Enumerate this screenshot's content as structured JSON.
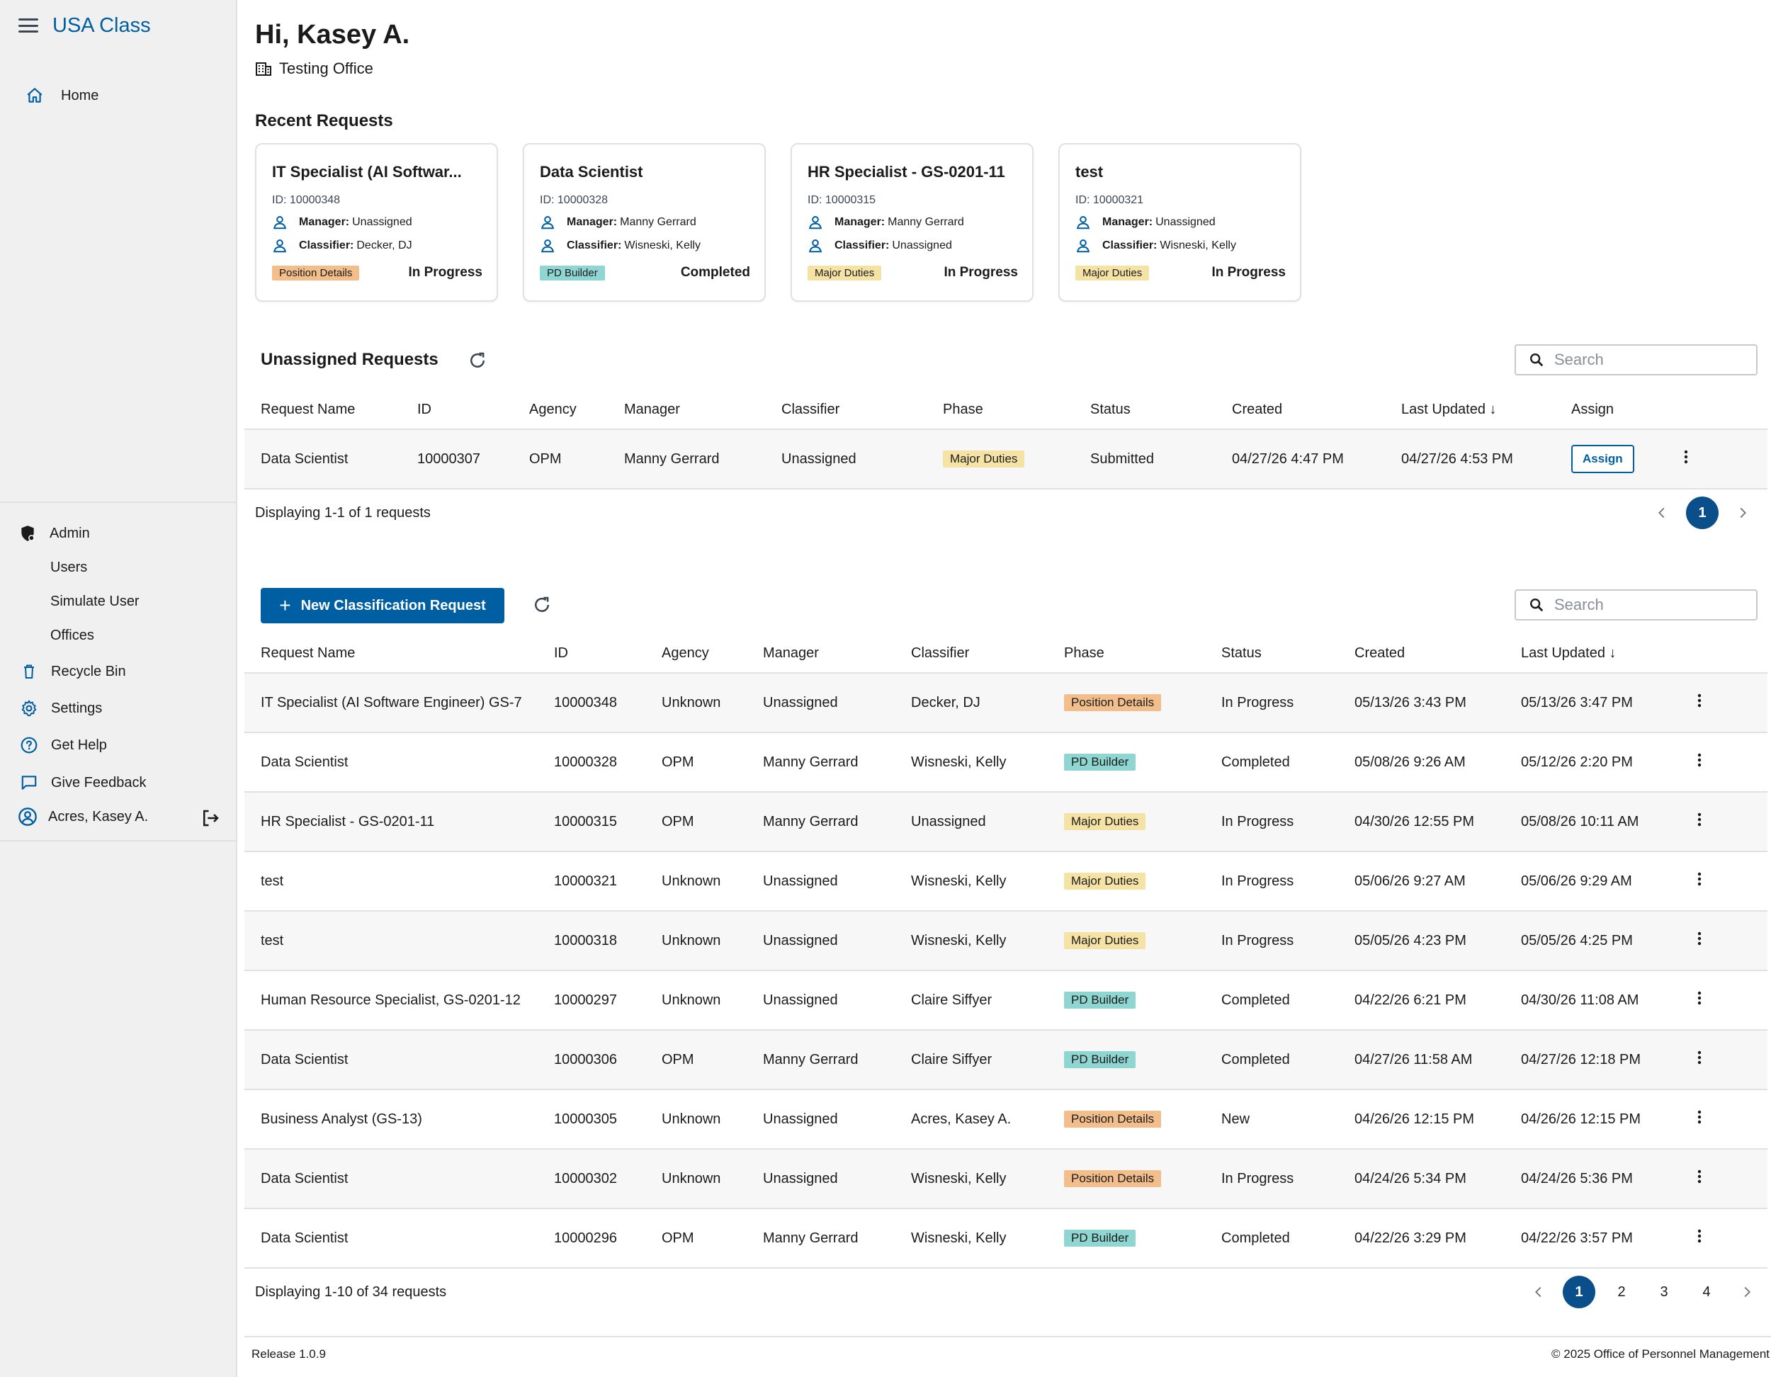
{
  "app": {
    "title": "USA Class"
  },
  "sidebar": {
    "home": "Home",
    "admin": "Admin",
    "admin_items": [
      "Users",
      "Simulate User",
      "Offices"
    ],
    "recycle_bin": "Recycle Bin",
    "settings": "Settings",
    "get_help": "Get Help",
    "give_feedback": "Give Feedback",
    "user": "Acres, Kasey A."
  },
  "header": {
    "greeting": "Hi, Kasey A.",
    "office": "Testing Office"
  },
  "recent": {
    "title": "Recent Requests",
    "cards": [
      {
        "title": "IT Specialist (AI Softwar...",
        "id": "ID: 10000348",
        "manager_label": "Manager:",
        "manager": "Unassigned",
        "classifier_label": "Classifier:",
        "classifier": "Decker, DJ",
        "phase": "Position Details",
        "phase_color": "orange",
        "status": "In Progress"
      },
      {
        "title": "Data Scientist",
        "id": "ID: 10000328",
        "manager_label": "Manager:",
        "manager": "Manny Gerrard",
        "classifier_label": "Classifier:",
        "classifier": "Wisneski, Kelly",
        "phase": "PD Builder",
        "phase_color": "teal",
        "status": "Completed"
      },
      {
        "title": "HR Specialist - GS-0201-11",
        "id": "ID: 10000315",
        "manager_label": "Manager:",
        "manager": "Manny Gerrard",
        "classifier_label": "Classifier:",
        "classifier": "Unassigned",
        "phase": "Major Duties",
        "phase_color": "yellow",
        "status": "In Progress"
      },
      {
        "title": "test",
        "id": "ID: 10000321",
        "manager_label": "Manager:",
        "manager": "Unassigned",
        "classifier_label": "Classifier:",
        "classifier": "Wisneski, Kelly",
        "phase": "Major Duties",
        "phase_color": "yellow",
        "status": "In Progress"
      }
    ]
  },
  "unassigned": {
    "title": "Unassigned Requests",
    "search_placeholder": "Search",
    "columns": [
      "Request Name",
      "ID",
      "Agency",
      "Manager",
      "Classifier",
      "Phase",
      "Status",
      "Created",
      "Last Updated",
      "Assign"
    ],
    "sort_arrow": "↓",
    "rows": [
      {
        "name": "Data Scientist",
        "id": "10000307",
        "agency": "OPM",
        "manager": "Manny Gerrard",
        "classifier": "Unassigned",
        "phase": "Major Duties",
        "phase_color": "yellow",
        "status": "Submitted",
        "created": "04/27/26 4:47 PM",
        "updated": "04/27/26 4:53 PM",
        "assign": "Assign"
      }
    ],
    "display": "Displaying 1-1 of 1 requests",
    "pages": [
      "1"
    ]
  },
  "requests": {
    "new_button": "New Classification Request",
    "search_placeholder": "Search",
    "columns": [
      "Request Name",
      "ID",
      "Agency",
      "Manager",
      "Classifier",
      "Phase",
      "Status",
      "Created",
      "Last Updated"
    ],
    "rows": [
      {
        "name": "IT Specialist (AI Software Engineer) GS-7",
        "id": "10000348",
        "agency": "Unknown",
        "manager": "Unassigned",
        "classifier": "Decker, DJ",
        "phase": "Position Details",
        "phase_color": "orange",
        "status": "In Progress",
        "created": "05/13/26 3:43 PM",
        "updated": "05/13/26 3:47 PM"
      },
      {
        "name": "Data Scientist",
        "id": "10000328",
        "agency": "OPM",
        "manager": "Manny Gerrard",
        "classifier": "Wisneski, Kelly",
        "phase": "PD Builder",
        "phase_color": "teal",
        "status": "Completed",
        "created": "05/08/26 9:26 AM",
        "updated": "05/12/26 2:20 PM"
      },
      {
        "name": "HR Specialist - GS-0201-11",
        "id": "10000315",
        "agency": "OPM",
        "manager": "Manny Gerrard",
        "classifier": "Unassigned",
        "phase": "Major Duties",
        "phase_color": "yellow",
        "status": "In Progress",
        "created": "04/30/26 12:55 PM",
        "updated": "05/08/26 10:11 AM"
      },
      {
        "name": "test",
        "id": "10000321",
        "agency": "Unknown",
        "manager": "Unassigned",
        "classifier": "Wisneski, Kelly",
        "phase": "Major Duties",
        "phase_color": "yellow",
        "status": "In Progress",
        "created": "05/06/26 9:27 AM",
        "updated": "05/06/26 9:29 AM"
      },
      {
        "name": "test",
        "id": "10000318",
        "agency": "Unknown",
        "manager": "Unassigned",
        "classifier": "Wisneski, Kelly",
        "phase": "Major Duties",
        "phase_color": "yellow",
        "status": "In Progress",
        "created": "05/05/26 4:23 PM",
        "updated": "05/05/26 4:25 PM"
      },
      {
        "name": "Human Resource Specialist, GS-0201-12",
        "id": "10000297",
        "agency": "Unknown",
        "manager": "Unassigned",
        "classifier": "Claire Siffyer",
        "phase": "PD Builder",
        "phase_color": "teal",
        "status": "Completed",
        "created": "04/22/26 6:21 PM",
        "updated": "04/30/26 11:08 AM"
      },
      {
        "name": "Data Scientist",
        "id": "10000306",
        "agency": "OPM",
        "manager": "Manny Gerrard",
        "classifier": "Claire Siffyer",
        "phase": "PD Builder",
        "phase_color": "teal",
        "status": "Completed",
        "created": "04/27/26 11:58 AM",
        "updated": "04/27/26 12:18 PM"
      },
      {
        "name": "Business Analyst (GS-13)",
        "id": "10000305",
        "agency": "Unknown",
        "manager": "Unassigned",
        "classifier": "Acres, Kasey A.",
        "phase": "Position Details",
        "phase_color": "orange",
        "status": "New",
        "created": "04/26/26 12:15 PM",
        "updated": "04/26/26 12:15 PM"
      },
      {
        "name": "Data Scientist",
        "id": "10000302",
        "agency": "Unknown",
        "manager": "Unassigned",
        "classifier": "Wisneski, Kelly",
        "phase": "Position Details",
        "phase_color": "orange",
        "status": "In Progress",
        "created": "04/24/26 5:34 PM",
        "updated": "04/24/26 5:36 PM"
      },
      {
        "name": "Data Scientist",
        "id": "10000296",
        "agency": "OPM",
        "manager": "Manny Gerrard",
        "classifier": "Wisneski, Kelly",
        "phase": "PD Builder",
        "phase_color": "teal",
        "status": "Completed",
        "created": "04/22/26 3:29 PM",
        "updated": "04/22/26 3:57 PM"
      }
    ],
    "display": "Displaying 1-10 of 34 requests",
    "pages": [
      "1",
      "2",
      "3",
      "4"
    ]
  },
  "footer": {
    "release": "Release 1.0.9",
    "copyright": "© 2025 Office of Personnel Management"
  },
  "colors": {
    "primary": "#005ea2",
    "orange": "#f2be8c",
    "teal": "#8fd6d2",
    "yellow": "#f5e2a5"
  }
}
